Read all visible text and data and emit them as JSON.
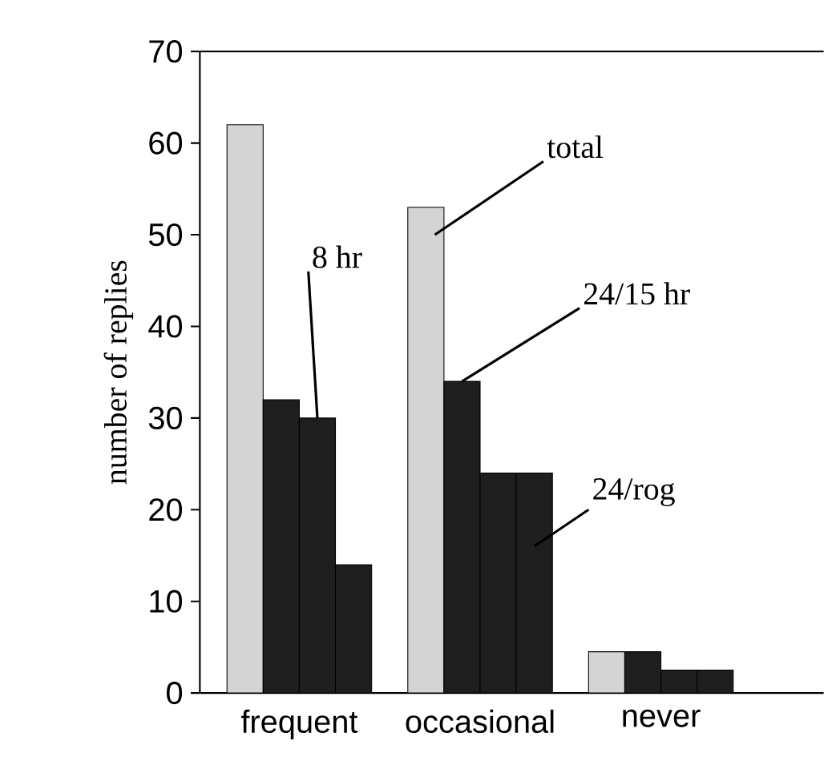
{
  "chart_data": {
    "type": "bar",
    "ylabel": "number of replies",
    "categories": [
      "frequent",
      "occasional",
      "never"
    ],
    "series": [
      {
        "name": "total",
        "color": "#d4d4d4",
        "values": [
          62,
          53,
          4.5
        ]
      },
      {
        "name": "24/15 hr",
        "color": "#1e1e1e",
        "values": [
          32,
          34,
          4.5
        ]
      },
      {
        "name": "8 hr",
        "color": "#1e1e1e",
        "values": [
          30,
          24,
          2.5
        ]
      },
      {
        "name": "24/rog",
        "color": "#1e1e1e",
        "values": [
          14,
          24,
          2.5
        ]
      }
    ],
    "ylim": [
      0,
      70
    ],
    "yticks": [
      0,
      10,
      20,
      30,
      40,
      50,
      60,
      70
    ],
    "grid": false
  }
}
